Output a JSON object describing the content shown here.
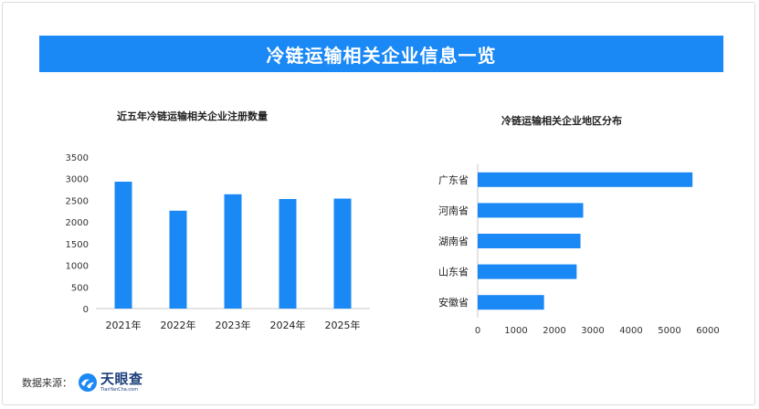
{
  "banner": {
    "title": "冷链运输相关企业信息一览"
  },
  "source": {
    "label": "数据来源：",
    "logo_name": "天眼查",
    "logo_domain": "TianYanCha.com"
  },
  "colors": {
    "bar": "#1a88f5",
    "banner": "#1a88f5",
    "axis": "#c8c8c8"
  },
  "chart_data": [
    {
      "type": "bar",
      "title": "近五年冷链运输相关企业注册数量",
      "categories": [
        "2021年",
        "2022年",
        "2023年",
        "2024年",
        "2025年"
      ],
      "values": [
        2930,
        2260,
        2640,
        2530,
        2540
      ],
      "ylim": [
        0,
        3500
      ],
      "yticks": [
        0,
        500,
        1000,
        1500,
        2000,
        2500,
        3000,
        3500
      ],
      "xlabel": "",
      "ylabel": "",
      "grid": false
    },
    {
      "type": "bar",
      "orientation": "horizontal",
      "title": "冷链运输相关企业地区分布",
      "categories": [
        "广东省",
        "河南省",
        "湖南省",
        "山东省",
        "安徽省"
      ],
      "values": [
        5600,
        2750,
        2680,
        2580,
        1730
      ],
      "xlim": [
        0,
        6000
      ],
      "xticks": [
        0,
        1000,
        2000,
        3000,
        4000,
        5000,
        6000
      ],
      "xlabel": "",
      "ylabel": "",
      "grid": false
    }
  ]
}
